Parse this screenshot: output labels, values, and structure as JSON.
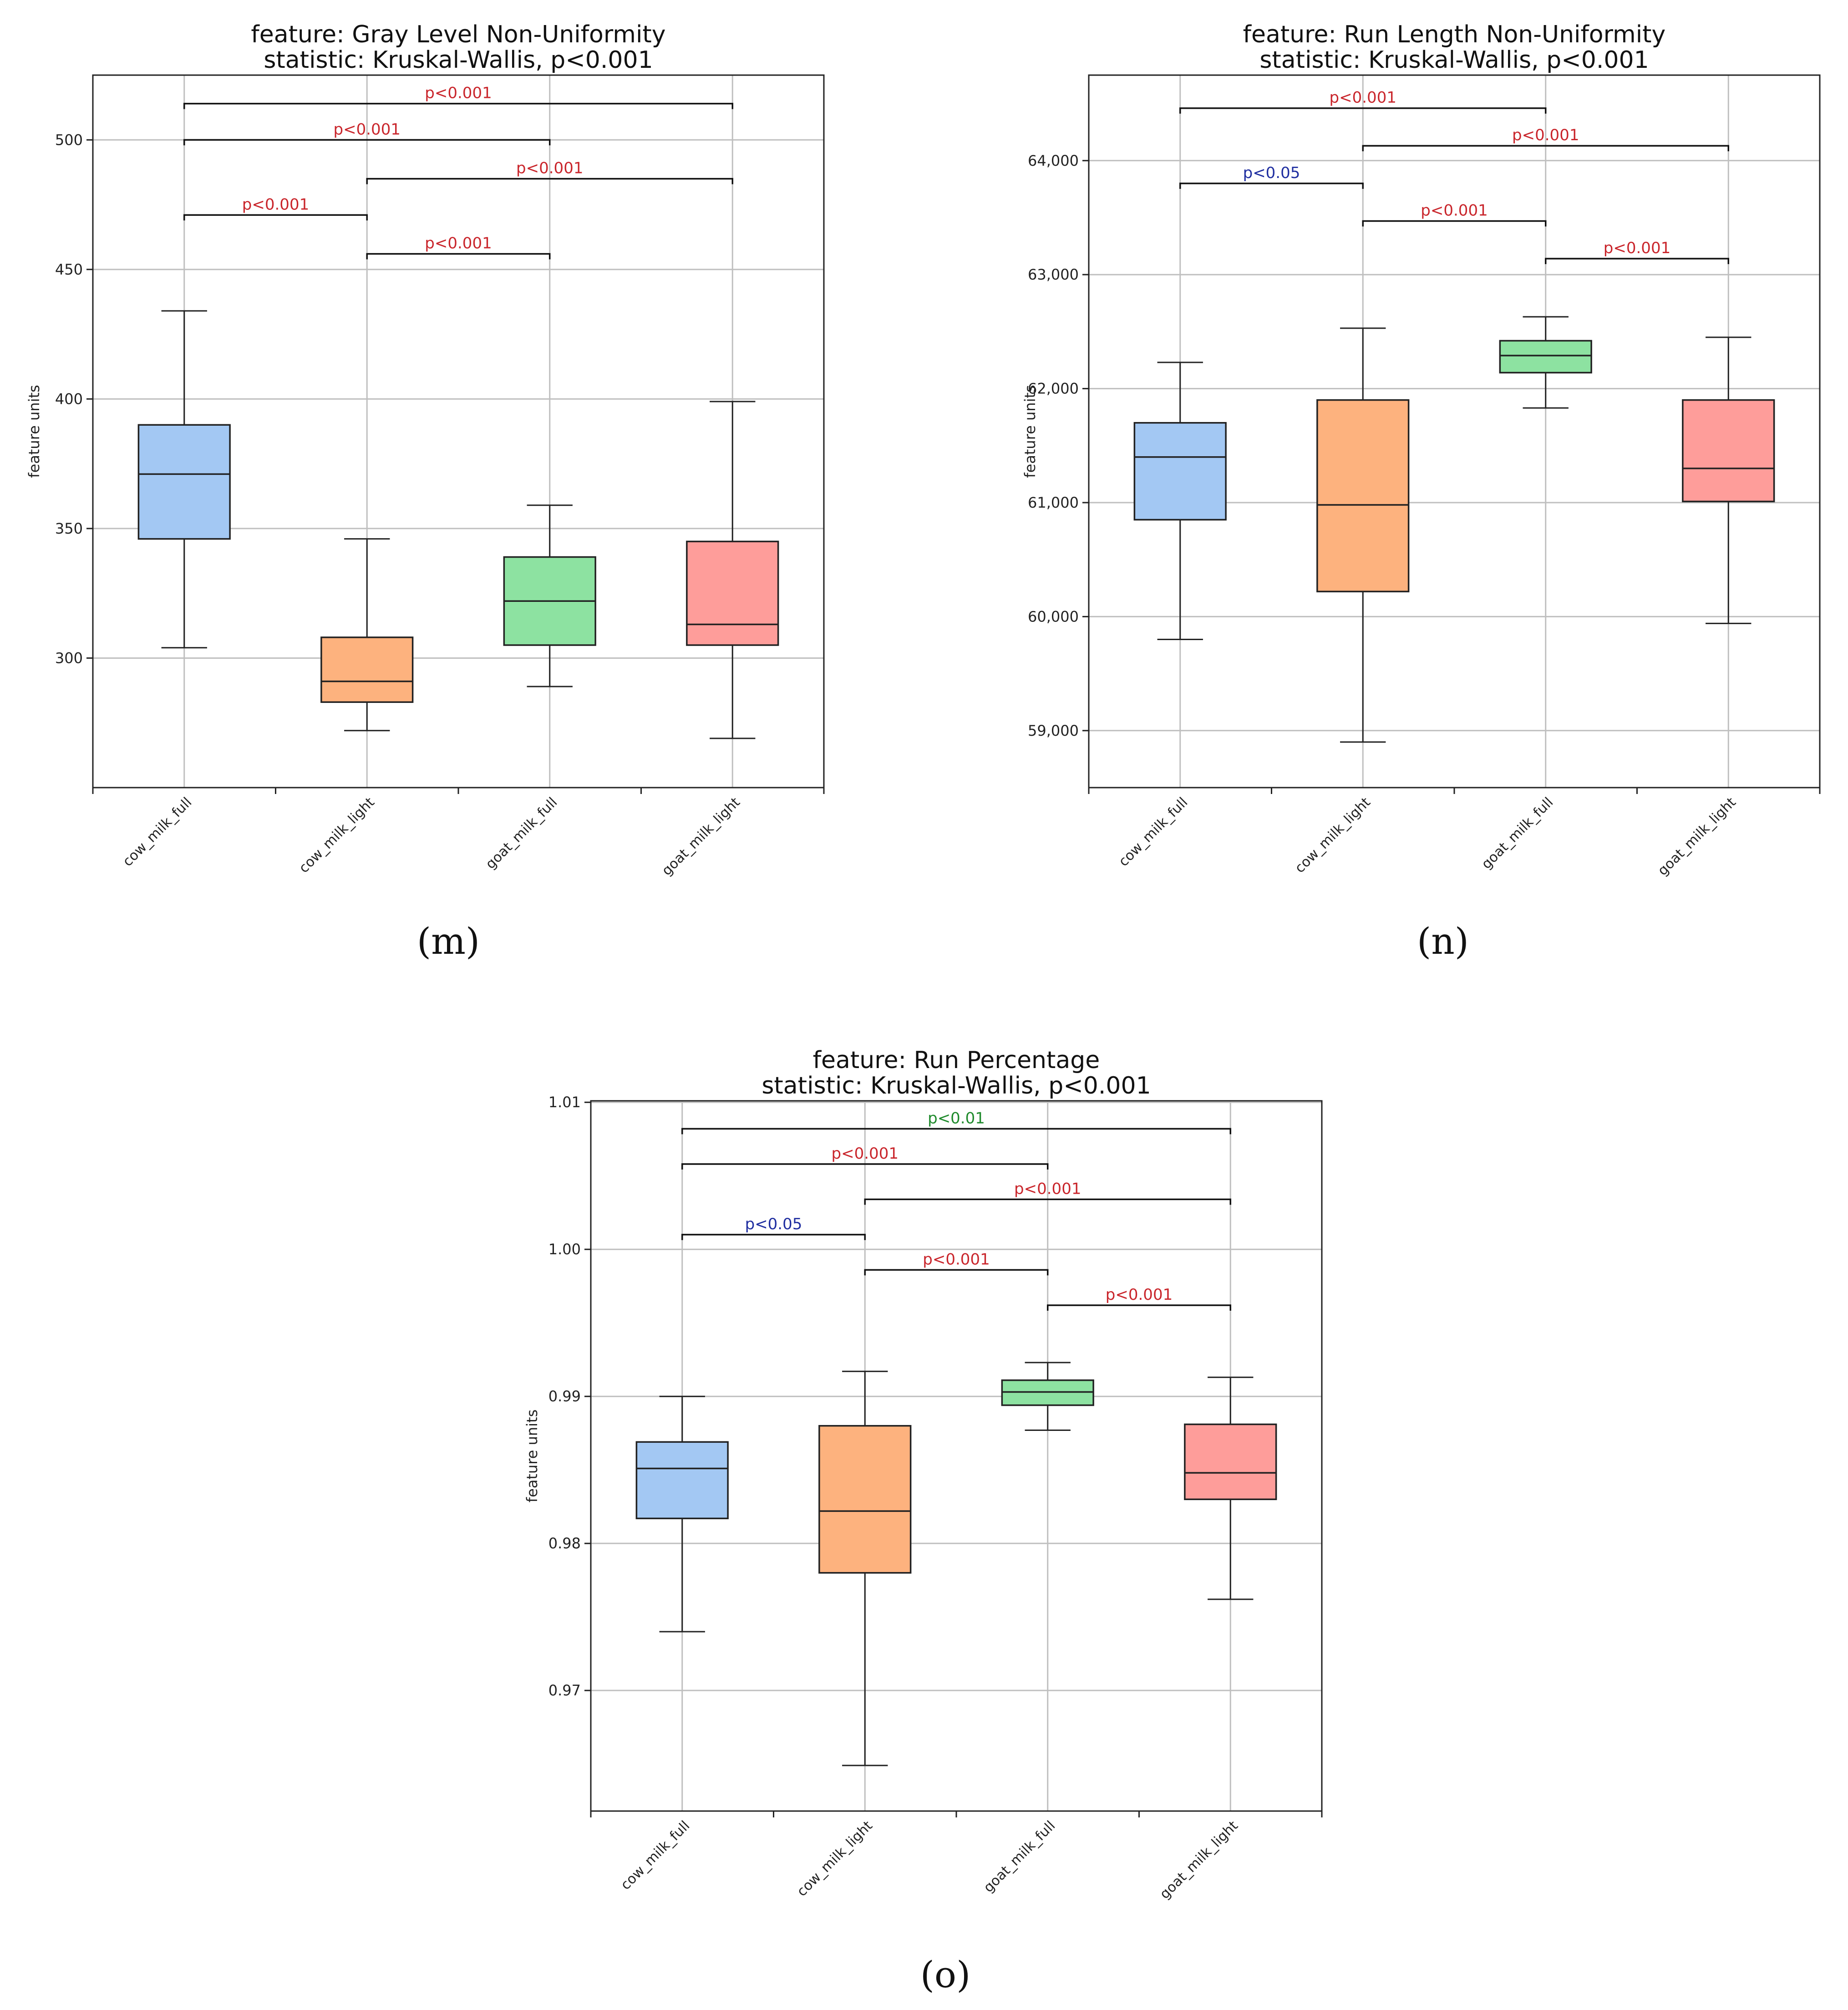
{
  "colors": {
    "cow_milk_full": "#a3c8f3",
    "cow_milk_light": "#fdb27e",
    "goat_milk_full": "#8de2a1",
    "goat_milk_light": "#fe9d9a",
    "sig_red": "#c9252b",
    "sig_blue": "#1f2ea0",
    "sig_green": "#1f8a2c"
  },
  "chart_data": [
    {
      "id": "m",
      "panel_label": "(m)",
      "type": "box",
      "title": "feature: Gray Level Non-Uniformity",
      "subtitle": "statistic: Kruskal-Wallis, p<0.001",
      "ylabel": "feature units",
      "categories": [
        "cow_milk_full",
        "cow_milk_light",
        "goat_milk_full",
        "goat_milk_light"
      ],
      "ylim": [
        250,
        525
      ],
      "yticks": [
        300,
        350,
        400,
        450,
        500
      ],
      "ytick_labels": [
        "300",
        "350",
        "400",
        "450",
        "500"
      ],
      "boxes": [
        {
          "whislo": 304,
          "q1": 346,
          "med": 371,
          "q3": 390,
          "whishi": 434
        },
        {
          "whislo": 272,
          "q1": 283,
          "med": 291,
          "q3": 308,
          "whishi": 346
        },
        {
          "whislo": 289,
          "q1": 305,
          "med": 322,
          "q3": 339,
          "whishi": 359
        },
        {
          "whislo": 269,
          "q1": 305,
          "med": 313,
          "q3": 345,
          "whishi": 399
        }
      ],
      "comparisons": [
        {
          "from": 0,
          "to": 3,
          "y": 514,
          "label": "p<0.001",
          "color": "sig_red"
        },
        {
          "from": 0,
          "to": 2,
          "y": 500,
          "label": "p<0.001",
          "color": "sig_red"
        },
        {
          "from": 1,
          "to": 3,
          "y": 485,
          "label": "p<0.001",
          "color": "sig_red"
        },
        {
          "from": 0,
          "to": 1,
          "y": 471,
          "label": "p<0.001",
          "color": "sig_red"
        },
        {
          "from": 1,
          "to": 2,
          "y": 456,
          "label": "p<0.001",
          "color": "sig_red"
        }
      ]
    },
    {
      "id": "n",
      "panel_label": "(n)",
      "type": "box",
      "title": "feature: Run Length Non-Uniformity",
      "subtitle": "statistic: Kruskal-Wallis, p<0.001",
      "ylabel": "feature units",
      "categories": [
        "cow_milk_full",
        "cow_milk_light",
        "goat_milk_full",
        "goat_milk_light"
      ],
      "ylim": [
        58500,
        64750
      ],
      "yticks": [
        59000,
        60000,
        61000,
        62000,
        63000,
        64000
      ],
      "ytick_labels": [
        "59,000",
        "60,000",
        "61,000",
        "62,000",
        "63,000",
        "64,000"
      ],
      "boxes": [
        {
          "whislo": 59800,
          "q1": 60850,
          "med": 61400,
          "q3": 61700,
          "whishi": 62230
        },
        {
          "whislo": 58900,
          "q1": 60220,
          "med": 60980,
          "q3": 61900,
          "whishi": 62530
        },
        {
          "whislo": 61830,
          "q1": 62140,
          "med": 62290,
          "q3": 62420,
          "whishi": 62630
        },
        {
          "whislo": 59940,
          "q1": 61010,
          "med": 61300,
          "q3": 61900,
          "whishi": 62450
        }
      ],
      "comparisons": [
        {
          "from": 0,
          "to": 2,
          "y": 64460,
          "label": "p<0.001",
          "color": "sig_red"
        },
        {
          "from": 1,
          "to": 3,
          "y": 64130,
          "label": "p<0.001",
          "color": "sig_red"
        },
        {
          "from": 0,
          "to": 1,
          "y": 63800,
          "label": "p<0.05",
          "color": "sig_blue"
        },
        {
          "from": 1,
          "to": 2,
          "y": 63470,
          "label": "p<0.001",
          "color": "sig_red"
        },
        {
          "from": 2,
          "to": 3,
          "y": 63140,
          "label": "p<0.001",
          "color": "sig_red"
        }
      ]
    },
    {
      "id": "o",
      "panel_label": "(o)",
      "type": "box",
      "title": "feature: Run Percentage",
      "subtitle": "statistic: Kruskal-Wallis, p<0.001",
      "ylabel": "feature units",
      "categories": [
        "cow_milk_full",
        "cow_milk_light",
        "goat_milk_full",
        "goat_milk_light"
      ],
      "ylim": [
        0.9618,
        1.0101
      ],
      "yticks": [
        0.97,
        0.98,
        0.99,
        1.0,
        1.01
      ],
      "ytick_labels": [
        "0.97",
        "0.98",
        "0.99",
        "1.00",
        "1.01"
      ],
      "boxes": [
        {
          "whislo": 0.974,
          "q1": 0.9817,
          "med": 0.9851,
          "q3": 0.9869,
          "whishi": 0.99
        },
        {
          "whislo": 0.9649,
          "q1": 0.978,
          "med": 0.9822,
          "q3": 0.988,
          "whishi": 0.9917
        },
        {
          "whislo": 0.9877,
          "q1": 0.9894,
          "med": 0.9903,
          "q3": 0.9911,
          "whishi": 0.9923
        },
        {
          "whislo": 0.9762,
          "q1": 0.983,
          "med": 0.9848,
          "q3": 0.9881,
          "whishi": 0.9913
        }
      ],
      "comparisons": [
        {
          "from": 0,
          "to": 3,
          "y": 1.0082,
          "label": "p<0.01",
          "color": "sig_green"
        },
        {
          "from": 0,
          "to": 2,
          "y": 1.0058,
          "label": "p<0.001",
          "color": "sig_red"
        },
        {
          "from": 1,
          "to": 3,
          "y": 1.0034,
          "label": "p<0.001",
          "color": "sig_red"
        },
        {
          "from": 0,
          "to": 1,
          "y": 1.001,
          "label": "p<0.05",
          "color": "sig_blue"
        },
        {
          "from": 1,
          "to": 2,
          "y": 0.9986,
          "label": "p<0.001",
          "color": "sig_red"
        },
        {
          "from": 2,
          "to": 3,
          "y": 0.9962,
          "label": "p<0.001",
          "color": "sig_red"
        }
      ]
    }
  ]
}
